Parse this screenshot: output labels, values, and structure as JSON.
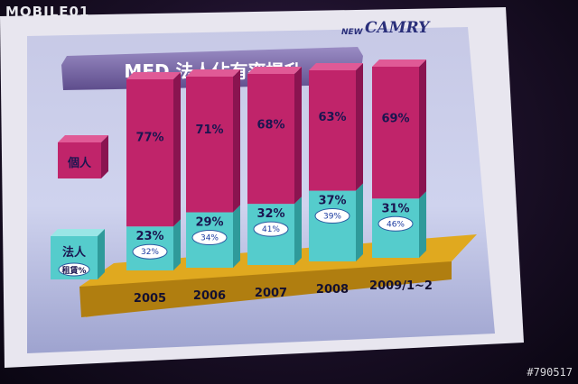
{
  "watermark": "MOBILE01",
  "photo_tag": "#790517",
  "brand": {
    "prefix": "NEW",
    "name": "CAMRY"
  },
  "slide_title": "MED 法人佔有率提升",
  "legend": {
    "personal": "個人",
    "corporate": "法人",
    "lease_pct": "租賃%"
  },
  "chart_data": {
    "type": "bar",
    "categories": [
      "2005",
      "2006",
      "2007",
      "2008",
      "2009/1~2"
    ],
    "series": [
      {
        "name": "法人",
        "values": [
          23,
          29,
          32,
          37,
          31
        ]
      },
      {
        "name": "個人",
        "values": [
          77,
          71,
          68,
          63,
          69
        ]
      }
    ],
    "lease_pct": [
      "32%",
      "34%",
      "41%",
      "39%",
      "46%"
    ],
    "ylim": [
      0,
      100
    ]
  },
  "colors": {
    "personal": "#c0246a",
    "corporate": "#55cccc",
    "floor": "#d9a21c",
    "title_bar": "#7a6aa6"
  }
}
